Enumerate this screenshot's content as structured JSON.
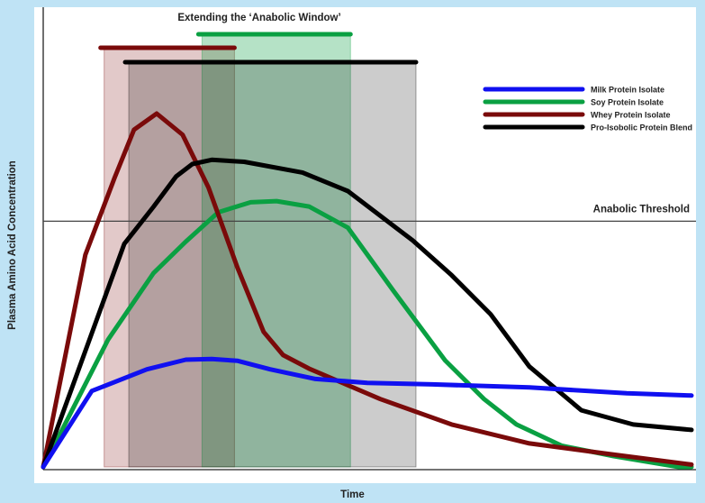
{
  "chart_data": {
    "type": "line",
    "title": "Extending the ‘Anabolic Window’",
    "xlabel": "Time",
    "ylabel": "Plasma Amino Acid Concentration",
    "xlim": [
      0,
      100
    ],
    "ylim": [
      0,
      100
    ],
    "threshold": {
      "label": "Anabolic Threshold",
      "value": 63.7
    },
    "series": [
      {
        "name": "Milk Protein Isolate",
        "color": "#1010f0",
        "x": [
          0,
          7.5,
          16,
          22,
          26,
          30,
          35,
          42,
          50,
          60,
          75,
          90,
          100
        ],
        "y": [
          0,
          19.7,
          25.3,
          27.8,
          28,
          27.5,
          25.3,
          22.8,
          21.8,
          21.4,
          20.6,
          19.1,
          18.5
        ]
      },
      {
        "name": "Soy Protein Isolate",
        "color": "#0aa042",
        "x": [
          0,
          10,
          17,
          22,
          27,
          32,
          36,
          41,
          47,
          54,
          62,
          68,
          73,
          80,
          88,
          98,
          100
        ],
        "y": [
          0,
          33,
          50.2,
          58.4,
          66,
          68.6,
          68.9,
          67.5,
          62,
          45.7,
          27.6,
          17.6,
          11,
          5.5,
          2.8,
          0,
          0
        ]
      },
      {
        "name": "Whey Protein Isolate",
        "color": "#7a0a0a",
        "x": [
          0,
          6.5,
          11,
          14,
          17.5,
          21.5,
          25.5,
          30,
          34,
          37,
          41,
          52,
          63,
          75,
          87,
          100
        ],
        "y": [
          0,
          55,
          74.9,
          87.4,
          91.6,
          86.1,
          72.4,
          51.5,
          35,
          29,
          25.5,
          17.6,
          11,
          6.1,
          3.4,
          0.6
        ]
      },
      {
        "name": "Pro-Isobolic Protein Blend",
        "color": "#000000",
        "x": [
          0,
          12.5,
          17,
          20.5,
          23,
          26,
          31,
          40,
          47,
          57,
          63,
          69,
          75,
          83,
          91,
          100
        ],
        "y": [
          0,
          57.8,
          67.4,
          75.3,
          78.5,
          79.6,
          79.1,
          76.3,
          71.5,
          58.7,
          49.7,
          39.6,
          26,
          14.7,
          11,
          9.6
        ]
      }
    ],
    "windows": [
      {
        "series": "Whey Protein Isolate",
        "color": "#7a0a0a",
        "x_start": 9.4,
        "x_end": 29.5
      },
      {
        "series": "Soy Protein Isolate",
        "color": "#0aa042",
        "x_start": 24.5,
        "x_end": 47.4
      },
      {
        "series": "Pro-Isobolic Protein Blend",
        "color": "#000000",
        "x_start": 13.2,
        "x_end": 57.5
      }
    ],
    "legend_position": "top-right",
    "grid": false
  }
}
